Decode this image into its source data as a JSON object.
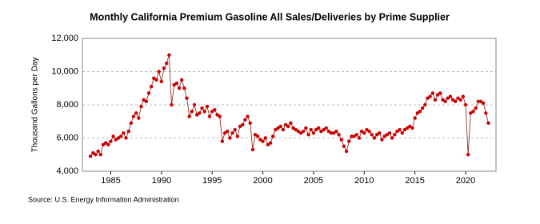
{
  "chart_data": {
    "type": "line",
    "title": "Monthly California Premium Gasoline All Sales/Deliveries by Prime Supplier",
    "y_label": "Thousand Gallons per Day",
    "source": "Source: U.S. Energy Information Administration",
    "color": "#cc0000",
    "line_color": "#8b1a1a",
    "grid": true,
    "xlim": [
      1982.2,
      2023
    ],
    "ylim": [
      4000,
      12000
    ],
    "xticks": [
      1985,
      1990,
      1995,
      2000,
      2005,
      2010,
      2015,
      2020
    ],
    "yticks": [
      {
        "value": 4000,
        "label": "4,000"
      },
      {
        "value": 6000,
        "label": "6,000"
      },
      {
        "value": 8000,
        "label": "8,000"
      },
      {
        "value": 10000,
        "label": "10,000"
      },
      {
        "value": 12000,
        "label": "12,000"
      }
    ],
    "x": [
      1983,
      1983.25,
      1983.5,
      1983.75,
      1984,
      1984.25,
      1984.5,
      1984.75,
      1985,
      1985.25,
      1985.5,
      1985.75,
      1986,
      1986.25,
      1986.5,
      1986.75,
      1987,
      1987.25,
      1987.5,
      1987.75,
      1988,
      1988.25,
      1988.5,
      1988.75,
      1989,
      1989.25,
      1989.5,
      1989.75,
      1990,
      1990.25,
      1990.5,
      1990.75,
      1991,
      1991.25,
      1991.5,
      1991.75,
      1992,
      1992.25,
      1992.5,
      1992.75,
      1993,
      1993.25,
      1993.5,
      1993.75,
      1994,
      1994.25,
      1994.5,
      1994.75,
      1995,
      1995.25,
      1995.5,
      1995.75,
      1996,
      1996.25,
      1996.5,
      1996.75,
      1997,
      1997.25,
      1997.5,
      1997.75,
      1998,
      1998.25,
      1998.5,
      1998.75,
      1999,
      1999.25,
      1999.5,
      1999.75,
      2000,
      2000.25,
      2000.5,
      2000.75,
      2001,
      2001.25,
      2001.5,
      2001.75,
      2002,
      2002.25,
      2002.5,
      2002.75,
      2003,
      2003.25,
      2003.5,
      2003.75,
      2004,
      2004.25,
      2004.5,
      2004.75,
      2005,
      2005.25,
      2005.5,
      2005.75,
      2006,
      2006.25,
      2006.5,
      2006.75,
      2007,
      2007.25,
      2007.5,
      2007.75,
      2008,
      2008.25,
      2008.5,
      2008.75,
      2009,
      2009.25,
      2009.5,
      2009.75,
      2010,
      2010.25,
      2010.5,
      2010.75,
      2011,
      2011.25,
      2011.5,
      2011.75,
      2012,
      2012.25,
      2012.5,
      2012.75,
      2013,
      2013.25,
      2013.5,
      2013.75,
      2014,
      2014.25,
      2014.5,
      2014.75,
      2015,
      2015.25,
      2015.5,
      2015.75,
      2016,
      2016.25,
      2016.5,
      2016.75,
      2017,
      2017.25,
      2017.5,
      2017.75,
      2018,
      2018.25,
      2018.5,
      2018.75,
      2019,
      2019.25,
      2019.5,
      2019.75,
      2020,
      2020.25,
      2020.5,
      2020.75,
      2021,
      2021.25,
      2021.5,
      2021.75,
      2022,
      2022.25
    ],
    "values": [
      4900,
      5100,
      5000,
      5200,
      5000,
      5600,
      5700,
      5600,
      5800,
      6100,
      5900,
      6000,
      6100,
      6300,
      6000,
      6400,
      6900,
      7300,
      7500,
      7200,
      7900,
      8300,
      8200,
      8700,
      9100,
      9600,
      9500,
      10000,
      9400,
      10200,
      10500,
      11000,
      8000,
      9200,
      9300,
      9000,
      9500,
      9000,
      8400,
      7300,
      7600,
      8000,
      7400,
      7500,
      7800,
      7600,
      7900,
      7300,
      7600,
      7700,
      7400,
      7300,
      5800,
      6300,
      6400,
      6000,
      6300,
      6500,
      6100,
      6700,
      6800,
      7100,
      7300,
      6900,
      5300,
      6200,
      6100,
      5900,
      5800,
      6000,
      5600,
      5700,
      6100,
      6500,
      6600,
      6700,
      6500,
      6800,
      6700,
      6900,
      6600,
      6500,
      6400,
      6300,
      6400,
      6600,
      6200,
      6500,
      6300,
      6500,
      6600,
      6400,
      6500,
      6600,
      6400,
      6300,
      6300,
      6400,
      6200,
      5900,
      5500,
      5200,
      5800,
      6100,
      6100,
      6200,
      6000,
      6400,
      6300,
      6500,
      6400,
      6200,
      6000,
      6200,
      6300,
      5900,
      6100,
      6200,
      6300,
      6000,
      6200,
      6400,
      6500,
      6300,
      6500,
      6600,
      6700,
      6600,
      7200,
      7500,
      7600,
      7800,
      8000,
      8400,
      8500,
      8700,
      8300,
      8600,
      8700,
      8300,
      8200,
      8400,
      8500,
      8300,
      8200,
      8400,
      8300,
      8500,
      8000,
      5000,
      7500,
      7600,
      7800,
      8200,
      8200,
      8100,
      7500,
      6900
    ]
  }
}
